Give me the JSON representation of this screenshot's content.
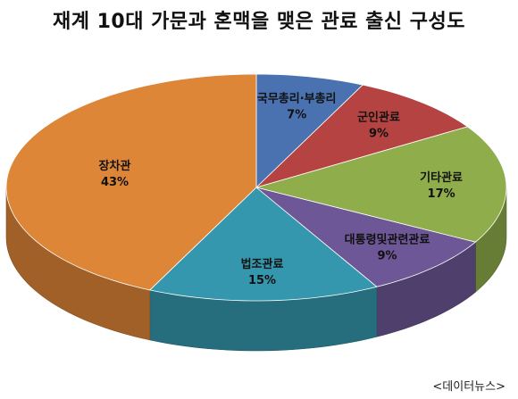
{
  "chart_data": {
    "type": "pie",
    "title": "재계 10대 가문과 혼맥을 맺은 관료 출신 구성도",
    "slices": [
      {
        "label": "국무총리·부총리",
        "value": 7,
        "value_label": "7%",
        "color": "#4a72b0"
      },
      {
        "label": "군인관료",
        "value": 9,
        "value_label": "9%",
        "color": "#b54341"
      },
      {
        "label": "기타관료",
        "value": 17,
        "value_label": "17%",
        "color": "#8fae4b"
      },
      {
        "label": "대통령및관련관료",
        "value": 9,
        "value_label": "9%",
        "color": "#6d5796"
      },
      {
        "label": "법조관료",
        "value": 15,
        "value_label": "15%",
        "color": "#3597ad"
      },
      {
        "label": "장차관",
        "value": 43,
        "value_label": "43%",
        "color": "#de8638"
      }
    ]
  },
  "source": "<데이터뉴스>"
}
